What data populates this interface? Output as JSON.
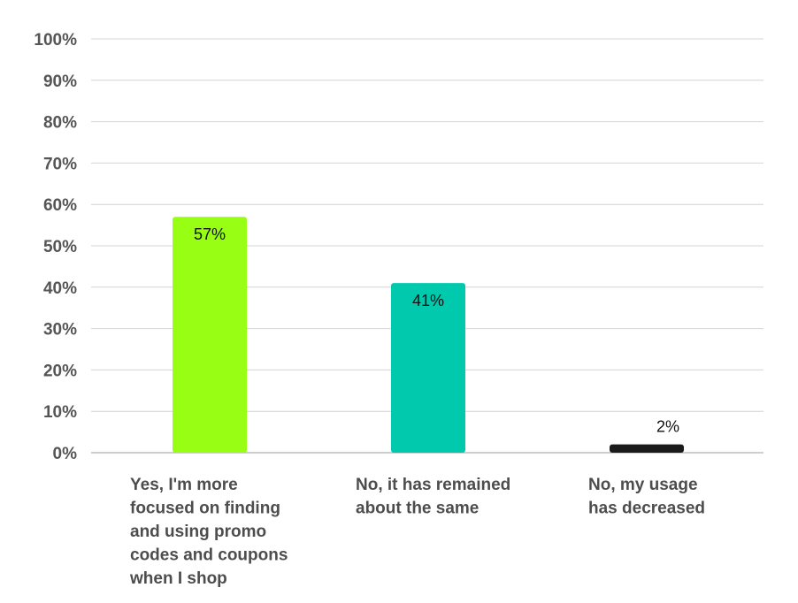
{
  "chart_data": {
    "type": "bar",
    "title": "",
    "xlabel": "",
    "ylabel": "",
    "ylim": [
      0,
      100
    ],
    "yticks": [
      0,
      10,
      20,
      30,
      40,
      50,
      60,
      70,
      80,
      90,
      100
    ],
    "ytick_labels": [
      "0%",
      "10%",
      "20%",
      "30%",
      "40%",
      "50%",
      "60%",
      "70%",
      "80%",
      "90%",
      "100%"
    ],
    "grid": true,
    "legend": "none",
    "categories": [
      [
        "Yes, I'm more",
        "focused on finding",
        "and using promo",
        "codes and coupons",
        "when I shop"
      ],
      [
        "No, it has remained",
        "about the same"
      ],
      [
        "No, my usage",
        "has decreased"
      ]
    ],
    "values": [
      57,
      41,
      2
    ],
    "data_labels": [
      "57%",
      "41%",
      "2%"
    ],
    "colors": [
      "#97fe14",
      "#00c9ad",
      "#1a1a1a"
    ]
  }
}
